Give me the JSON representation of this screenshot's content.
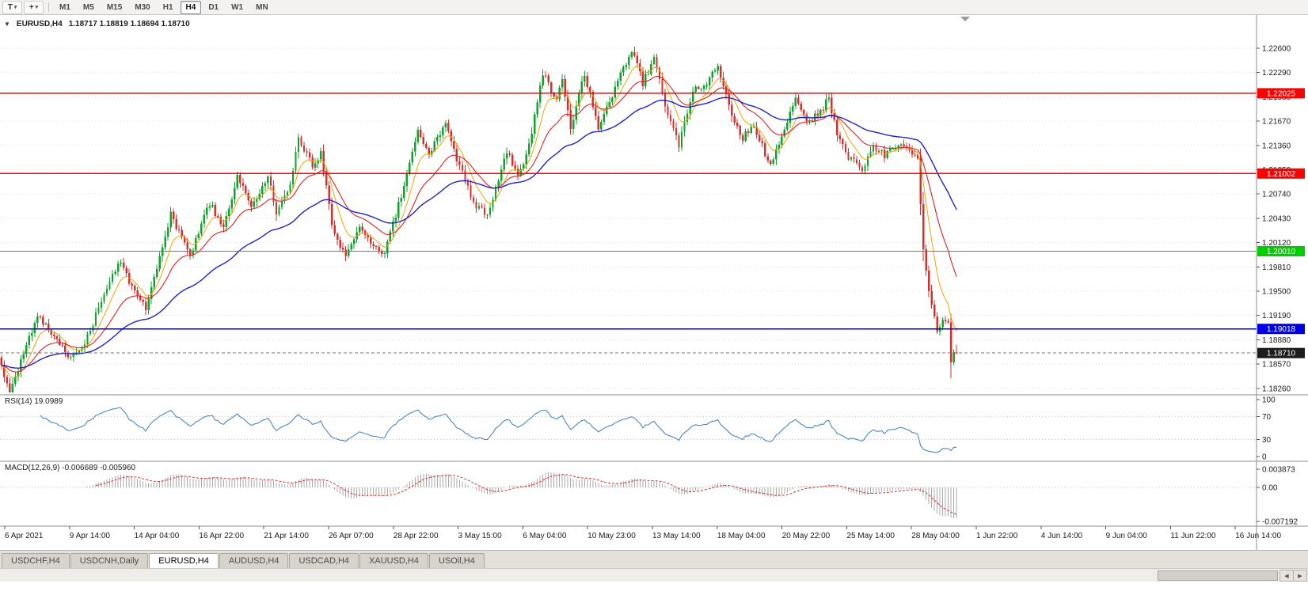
{
  "toolbar": {
    "text_button": "T",
    "cursor_tool_glyph": "+",
    "caret_glyph": "▾",
    "periods": [
      "M1",
      "M5",
      "M15",
      "M30",
      "H1",
      "H4",
      "D1",
      "W1",
      "MN"
    ],
    "active_period": "H4"
  },
  "window_tabs": {
    "tabs": [
      "USDCHF,H4",
      "USDCNH,Daily",
      "EURUSD,H4",
      "AUDUSD,H4",
      "USDCAD,H4",
      "XAUUSD,H4",
      "USOil,H4"
    ],
    "active_tab": "EURUSD,H4"
  },
  "scrollbar": {
    "left_glyph": "◀",
    "right_glyph": "▶"
  },
  "chart_data": {
    "type": "candlestick",
    "symbol": "EURUSD,H4",
    "collapse_glyph": "▼",
    "ohlc_text": "1.18717 1.18819 1.18694 1.18710",
    "open": 1.18717,
    "high": 1.18819,
    "low": 1.18694,
    "close": 1.1871,
    "up_color": "#0fa32b",
    "down_color": "#d43030",
    "price_axis_ticks": [
      "1.22600",
      "1.22290",
      "1.21980",
      "1.21670",
      "1.21360",
      "1.21050",
      "1.20740",
      "1.20430",
      "1.20120",
      "1.19810",
      "1.19500",
      "1.19190",
      "1.18880",
      "1.18570",
      "1.18260"
    ],
    "time_axis_labels": [
      "6 Apr 2021",
      "9 Apr 14:00",
      "14 Apr 04:00",
      "16 Apr 22:00",
      "21 Apr 14:00",
      "26 Apr 07:00",
      "28 Apr 22:00",
      "3 May 15:00",
      "6 May 04:00",
      "10 May 23:00",
      "13 May 14:00",
      "18 May 04:00",
      "20 May 22:00",
      "25 May 14:00",
      "28 May 04:00",
      "1 Jun 22:00",
      "4 Jun 14:00",
      "9 Jun 04:00",
      "11 Jun 22:00",
      "16 Jun 14:00"
    ],
    "horizontal_levels": [
      {
        "price": 1.22025,
        "label": "1.22025",
        "color": "#ff0000",
        "width": 1.4
      },
      {
        "price": 1.21002,
        "label": "1.21002",
        "color": "#ff0000",
        "width": 1.4
      },
      {
        "price": 1.2001,
        "label": "1.20010",
        "color": "#00cc00",
        "width": 1.4
      },
      {
        "price": 1.19018,
        "label": "1.19018",
        "color": "#0000e6",
        "width": 1.8
      }
    ],
    "current_price": {
      "value": 1.1871,
      "label": "1.18710"
    },
    "bar_count": 345,
    "price_path": [
      [
        0,
        1.1865
      ],
      [
        4,
        1.1822
      ],
      [
        14,
        1.192
      ],
      [
        26,
        1.1862
      ],
      [
        31,
        1.1885
      ],
      [
        43,
        1.1988
      ],
      [
        53,
        1.1928
      ],
      [
        62,
        1.2048
      ],
      [
        69,
        1.1996
      ],
      [
        76,
        1.2062
      ],
      [
        81,
        1.203
      ],
      [
        86,
        1.2095
      ],
      [
        91,
        1.2058
      ],
      [
        97,
        1.2098
      ],
      [
        100,
        1.2046
      ],
      [
        105,
        1.2088
      ],
      [
        108,
        1.2148
      ],
      [
        113,
        1.2108
      ],
      [
        116,
        1.2128
      ],
      [
        120,
        1.2035
      ],
      [
        125,
        1.1993
      ],
      [
        130,
        1.2035
      ],
      [
        134,
        1.201
      ],
      [
        139,
        1.1997
      ],
      [
        144,
        1.206
      ],
      [
        151,
        1.2158
      ],
      [
        155,
        1.2122
      ],
      [
        161,
        1.2168
      ],
      [
        165,
        1.2118
      ],
      [
        171,
        1.2062
      ],
      [
        176,
        1.2046
      ],
      [
        183,
        1.213
      ],
      [
        187,
        1.2095
      ],
      [
        191,
        1.2135
      ],
      [
        196,
        1.2228
      ],
      [
        201,
        1.2192
      ],
      [
        203,
        1.2222
      ],
      [
        206,
        1.2156
      ],
      [
        211,
        1.2228
      ],
      [
        216,
        1.216
      ],
      [
        221,
        1.22
      ],
      [
        228,
        1.2258
      ],
      [
        232,
        1.2216
      ],
      [
        236,
        1.2245
      ],
      [
        241,
        1.2175
      ],
      [
        245,
        1.2136
      ],
      [
        250,
        1.2208
      ],
      [
        255,
        1.2215
      ],
      [
        259,
        1.224
      ],
      [
        264,
        1.2175
      ],
      [
        268,
        1.2146
      ],
      [
        272,
        1.216
      ],
      [
        278,
        1.2108
      ],
      [
        282,
        1.215
      ],
      [
        287,
        1.2195
      ],
      [
        291,
        1.2165
      ],
      [
        295,
        1.2175
      ],
      [
        299,
        1.2196
      ],
      [
        302,
        1.215
      ],
      [
        306,
        1.212
      ],
      [
        311,
        1.2108
      ],
      [
        315,
        1.2135
      ],
      [
        319,
        1.2124
      ],
      [
        324,
        1.214
      ],
      [
        328,
        1.213
      ],
      [
        331,
        1.2118
      ],
      [
        333,
        1.2005
      ],
      [
        334,
        1.1975
      ],
      [
        336,
        1.193
      ],
      [
        338,
        1.1902
      ],
      [
        340,
        1.1914
      ],
      [
        342,
        1.1912
      ],
      [
        343,
        1.186
      ],
      [
        344,
        1.1872
      ]
    ],
    "moving_averages": [
      {
        "name": "fast-ma",
        "period": 8,
        "color": "#efa500",
        "width": 1
      },
      {
        "name": "mid-ma",
        "period": 21,
        "color": "#e02020",
        "width": 1.1
      },
      {
        "name": "slow-ma",
        "period": 55,
        "color": "#2222cc",
        "width": 1.4
      }
    ],
    "rsi": {
      "label": "RSI(14)",
      "value": "19.0989",
      "period": 14,
      "levels": [
        100,
        70,
        30,
        0
      ],
      "line_color": "#4a86c8"
    },
    "macd": {
      "label": "MACD(12,26,9)",
      "values": "-0.006689 -0.005960",
      "axis_labels": [
        "0.003873",
        "0.00",
        "-0.007192"
      ],
      "hist_color": "#a8a8a8",
      "signal_color": "#e03030"
    }
  }
}
